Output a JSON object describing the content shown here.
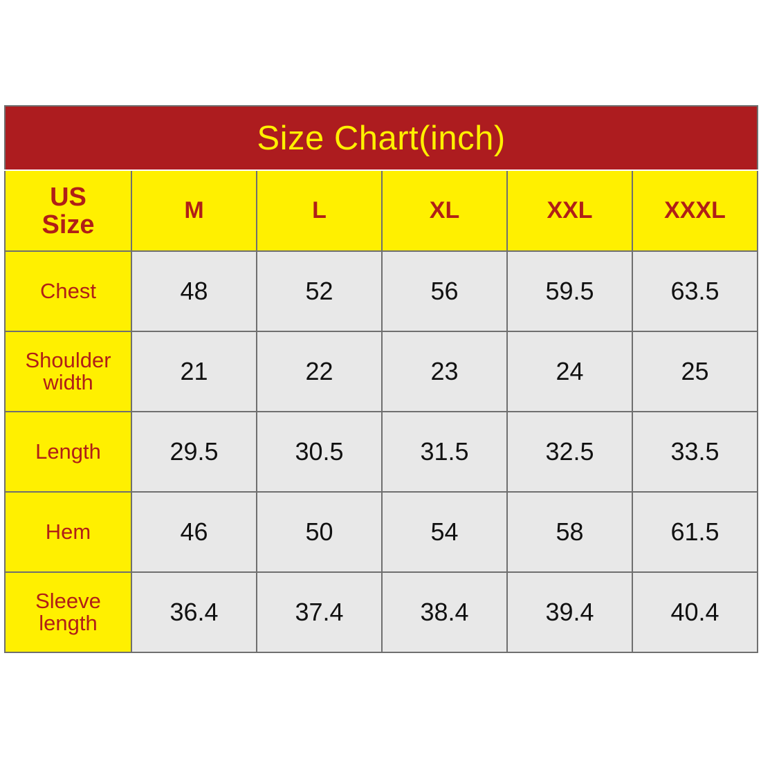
{
  "chart_data": {
    "type": "table",
    "title": "Size Chart(inch)",
    "corner_label": [
      "US",
      "Size"
    ],
    "columns": [
      "M",
      "L",
      "XL",
      "XXL",
      "XXXL"
    ],
    "rows": [
      {
        "label_lines": [
          "Chest"
        ],
        "values": [
          "48",
          "52",
          "56",
          "59.5",
          "63.5"
        ]
      },
      {
        "label_lines": [
          "Shoulder",
          "width"
        ],
        "values": [
          "21",
          "22",
          "23",
          "24",
          "25"
        ]
      },
      {
        "label_lines": [
          "Length"
        ],
        "values": [
          "29.5",
          "30.5",
          "31.5",
          "32.5",
          "33.5"
        ]
      },
      {
        "label_lines": [
          "Hem"
        ],
        "values": [
          "46",
          "50",
          "54",
          "58",
          "61.5"
        ]
      },
      {
        "label_lines": [
          "Sleeve",
          "length"
        ],
        "values": [
          "36.4",
          "37.4",
          "38.4",
          "39.4",
          "40.4"
        ]
      }
    ]
  },
  "colors": {
    "title_background": "#ad1c1f",
    "title_text": "#fff000",
    "header_background": "#fff000",
    "header_text": "#b01f17",
    "value_background": "#e8e8e8",
    "value_text": "#111111",
    "grid": "#6f6f6f"
  }
}
